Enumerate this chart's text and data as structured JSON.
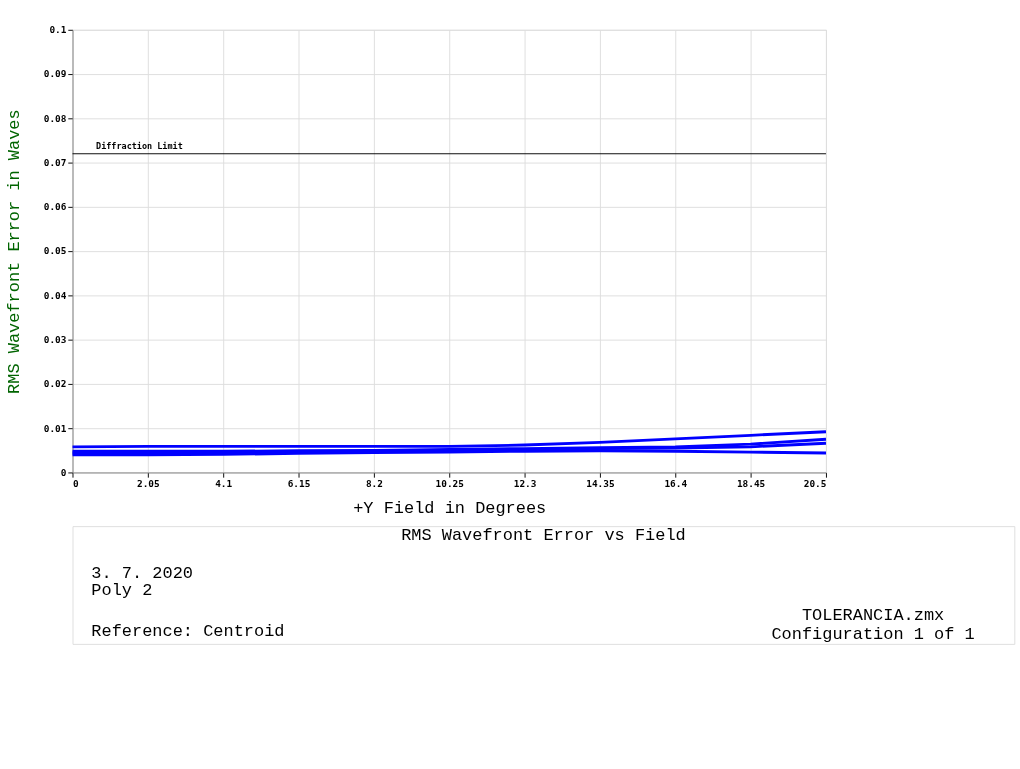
{
  "chart_data": {
    "type": "line",
    "title": "RMS Wavefront Error vs Field",
    "xlabel": "+Y Field in Degrees",
    "ylabel": "RMS Wavefront Error in Waves",
    "x": [
      0,
      2.05,
      4.1,
      6.15,
      8.2,
      10.25,
      12.3,
      14.35,
      16.4,
      18.45,
      20.5
    ],
    "series": [
      {
        "color": "#0000ff",
        "values": [
          0.0058,
          0.0059,
          0.0059,
          0.0059,
          0.0059,
          0.0059,
          0.0062,
          0.0068,
          0.0076,
          0.0084,
          0.0092
        ]
      },
      {
        "color": "#0000ff",
        "values": [
          0.0048,
          0.0048,
          0.0048,
          0.0049,
          0.005,
          0.0052,
          0.0054,
          0.0056,
          0.0058,
          0.0064,
          0.0075
        ]
      },
      {
        "color": "#0000ff",
        "values": [
          0.0044,
          0.0044,
          0.0045,
          0.0046,
          0.0048,
          0.005,
          0.0052,
          0.0054,
          0.0055,
          0.0058,
          0.0066
        ]
      },
      {
        "color": "#0000ff",
        "values": [
          0.004,
          0.004,
          0.0041,
          0.0043,
          0.0045,
          0.0046,
          0.0048,
          0.0049,
          0.0048,
          0.0046,
          0.0044
        ]
      }
    ],
    "xlim": [
      0,
      20.5
    ],
    "xticks": [
      0,
      2.05,
      4.1,
      6.15,
      8.2,
      10.25,
      12.3,
      14.35,
      16.4,
      18.45,
      20.5
    ],
    "ylim": [
      0,
      0.1
    ],
    "yticks": [
      0,
      0.01,
      0.02,
      0.03,
      0.04,
      0.05,
      0.06,
      0.07,
      0.08,
      0.09,
      0.1
    ],
    "ref_lines": [
      {
        "axis": "y",
        "value": 0.072,
        "label": "Diffraction Limit",
        "color": "#000000"
      }
    ],
    "annotations": [
      "3. 7. 2020",
      "Poly   2",
      "Reference: Centroid",
      "TOLERANCIA.zmx",
      "Configuration 1 of 1"
    ],
    "grid": true,
    "legend": false,
    "marker": "none",
    "line_style": "solid"
  }
}
